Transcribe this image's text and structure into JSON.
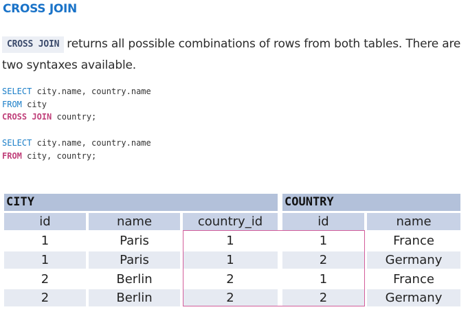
{
  "title": "CROSS JOIN",
  "intro": {
    "keyword": "CROSS JOIN",
    "text": "returns all possible combinations of rows from both tables. There are two syntaxes available."
  },
  "code1": {
    "l1_kw": "SELECT",
    "l1_rest": " city.name, country.name",
    "l2_kw": "FROM",
    "l2_rest": " city",
    "l3_kw": "CROSS JOIN",
    "l3_rest": " country;"
  },
  "code2": {
    "l1_kw": "SELECT",
    "l1_rest": " city.name, country.name",
    "l2_kw": "FROM",
    "l2_rest": " city, country;"
  },
  "table": {
    "city_label": "CITY",
    "country_label": "COUNTRY",
    "headers": [
      "id",
      "name",
      "country_id",
      "id",
      "name"
    ],
    "rows": [
      [
        "1",
        "Paris",
        "1",
        "1",
        "France"
      ],
      [
        "1",
        "Paris",
        "1",
        "2",
        "Germany"
      ],
      [
        "2",
        "Berlin",
        "2",
        "1",
        "France"
      ],
      [
        "2",
        "Berlin",
        "2",
        "2",
        "Germany"
      ]
    ]
  },
  "colors": {
    "title": "#1a73c8",
    "keyword_blue": "#1a7ec8",
    "keyword_pink": "#c0407a",
    "header_band": "#b3c1da",
    "row_shade": "#e6eaf2",
    "highlight": "#d35c9a"
  }
}
